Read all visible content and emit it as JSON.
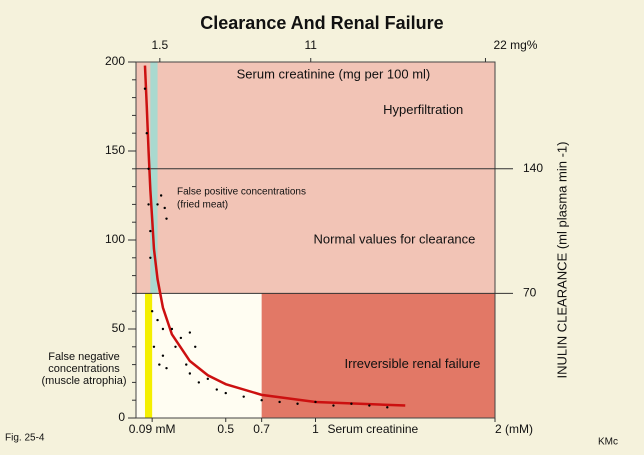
{
  "chart_data": {
    "type": "line",
    "title": "Clearance And Renal Failure",
    "xlabel": "Serum creatinine",
    "x2label": "Serum creatinine (mg per 100 ml)",
    "y2label": "INULIN CLEARANCE (ml plasma min -1)",
    "xlim": [
      0,
      2
    ],
    "ylim": [
      0,
      200
    ],
    "y2lim": [
      0,
      200
    ],
    "x2lim": [
      0,
      22.6
    ],
    "xticks": [
      {
        "value": 0.09,
        "label": "0.09 mM"
      },
      0.5,
      0.7,
      1,
      {
        "value": 2,
        "label": "2 (mM)"
      }
    ],
    "x2ticks": [
      1.5,
      11,
      {
        "value": 22,
        "label": "22 mg%"
      }
    ],
    "yticks": [
      0,
      50,
      100,
      150,
      200
    ],
    "y2ticks": [
      70,
      140
    ],
    "regions": [
      {
        "label": "Hyperfiltration",
        "x": [
          0,
          2
        ],
        "y": [
          140,
          200
        ],
        "color": "#f2c4b6"
      },
      {
        "label": "Normal values for clearance",
        "x": [
          0,
          2
        ],
        "y": [
          70,
          140
        ],
        "color": "#f2c4b6"
      },
      {
        "label": "Irreversible renal failure",
        "x": [
          0.7,
          2
        ],
        "y": [
          0,
          70
        ],
        "color": "#e27866"
      }
    ],
    "bands": [
      {
        "x": [
          0.08,
          0.12
        ],
        "y": [
          70,
          200
        ],
        "color": "#a9d9cf",
        "lines": [
          "False positive concentrations",
          "(fried meat)"
        ]
      },
      {
        "x": [
          0.05,
          0.09
        ],
        "y": [
          0,
          70
        ],
        "color": "#f4ef00",
        "lines": [
          "False negative",
          "concentrations",
          "(muscle atrophia)"
        ]
      }
    ],
    "series": [
      {
        "color": "#cc1010",
        "x": [
          0.05,
          0.06,
          0.07,
          0.08,
          0.09,
          0.1,
          0.12,
          0.15,
          0.2,
          0.3,
          0.4,
          0.5,
          0.7,
          1,
          1.5
        ],
        "values": [
          198,
          175,
          150,
          128,
          112,
          95,
          78,
          62,
          47,
          32,
          24,
          19,
          13,
          9,
          7
        ]
      },
      {
        "color": "#000000",
        "x": [
          0.05,
          0.06,
          0.07,
          0.07,
          0.08,
          0.08,
          0.09,
          0.1,
          0.12,
          0.13,
          0.15,
          0.15,
          0.17,
          0.2,
          0.22,
          0.25,
          0.28,
          0.3,
          0.3,
          0.33,
          0.35,
          0.4,
          0.45,
          0.5,
          0.6,
          0.7,
          0.8,
          0.9,
          1,
          1.1,
          1.2,
          1.3,
          1.4,
          0.12,
          0.14,
          0.16,
          0.17
        ],
        "values": [
          185,
          160,
          140,
          120,
          105,
          90,
          60,
          40,
          55,
          30,
          50,
          35,
          28,
          50,
          40,
          45,
          30,
          48,
          25,
          40,
          20,
          22,
          16,
          14,
          12,
          10,
          9,
          8,
          9,
          7,
          8,
          7,
          6,
          120,
          125,
          118,
          112
        ]
      }
    ],
    "footer_left": "Fig. 25-4",
    "footer_right": "KMc"
  }
}
